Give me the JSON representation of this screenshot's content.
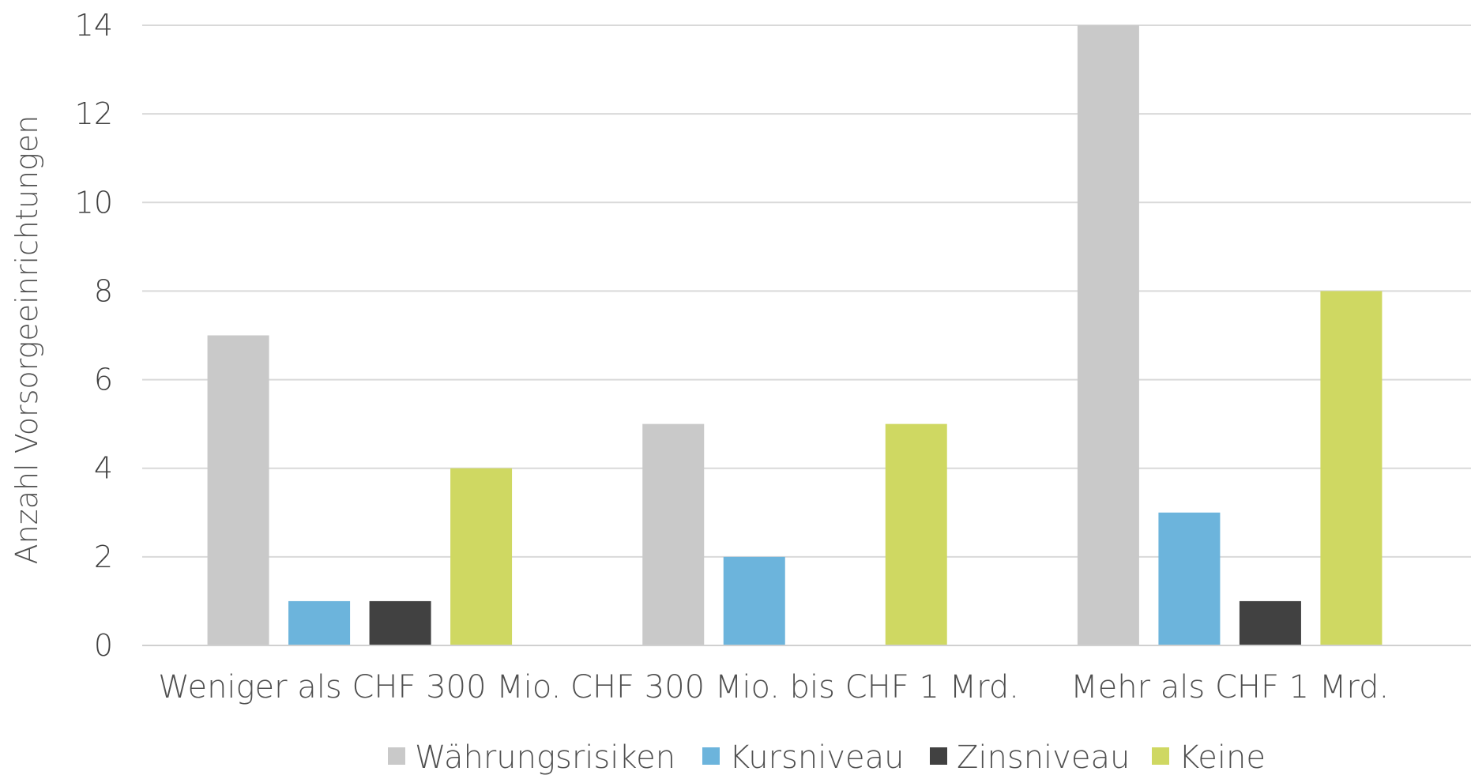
{
  "chart_data": {
    "type": "bar",
    "title": "",
    "xlabel": "",
    "ylabel": "Anzahl Vorsorgeeinrichtungen",
    "ylim": [
      0,
      14
    ],
    "yticks": [
      "0",
      "2",
      "4",
      "6",
      "8",
      "10",
      "12",
      "14"
    ],
    "grid": true,
    "legend_position": "bottom",
    "categories": [
      "Weniger als CHF 300 Mio.",
      "CHF 300 Mio. bis CHF 1 Mrd.",
      "Mehr als CHF 1 Mrd."
    ],
    "series": [
      {
        "name": "Währungsrisiken",
        "color": "#c9c9c9",
        "values": [
          7,
          5,
          14
        ]
      },
      {
        "name": "Kursniveau",
        "color": "#6cb4dc",
        "values": [
          1,
          2,
          3
        ]
      },
      {
        "name": "Zinsniveau",
        "color": "#414141",
        "values": [
          1,
          0,
          1
        ]
      },
      {
        "name": "Keine",
        "color": "#cfd862",
        "values": [
          4,
          5,
          8
        ]
      }
    ]
  }
}
